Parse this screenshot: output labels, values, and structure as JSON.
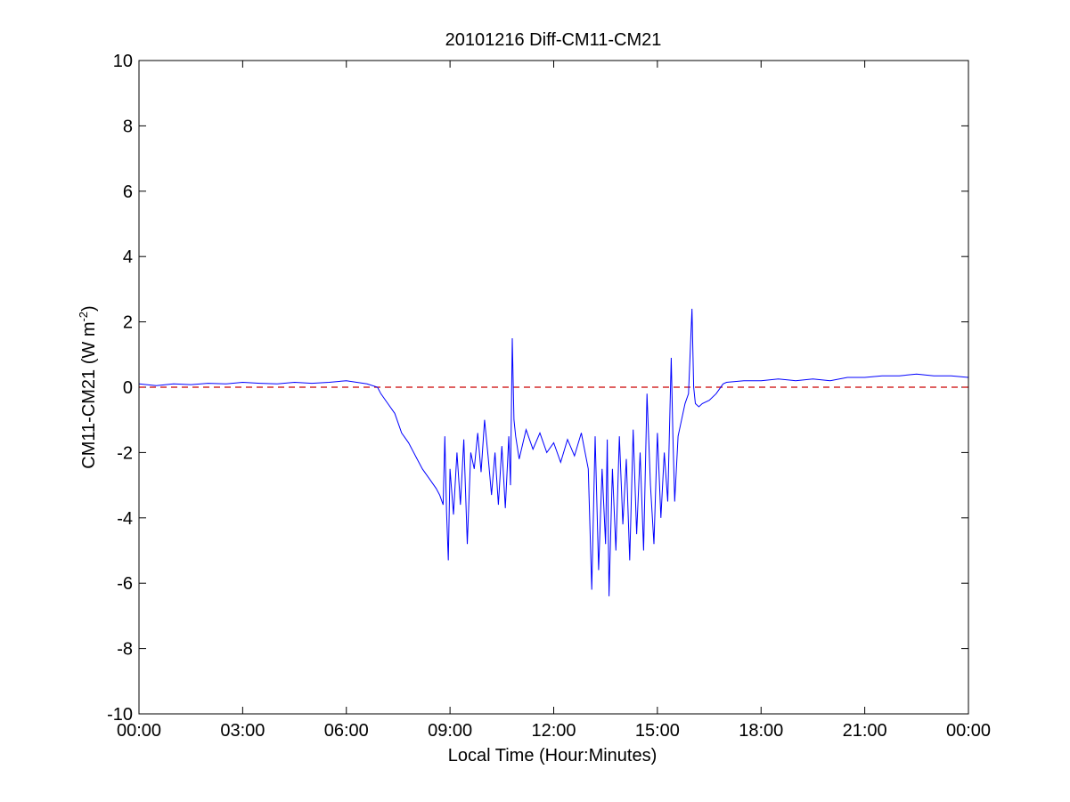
{
  "chart_data": {
    "type": "line",
    "title": "20101216 Diff-CM11-CM21",
    "xlabel": "Local Time (Hour:Minutes)",
    "ylabel": {
      "main": "CM11-CM21 (W m",
      "sup": "-2",
      "close": ")"
    },
    "xlim": [
      0,
      24
    ],
    "ylim": [
      -10,
      10
    ],
    "x_ticks": [
      0,
      3,
      6,
      9,
      12,
      15,
      18,
      21,
      24
    ],
    "x_tick_labels": [
      "00:00",
      "03:00",
      "06:00",
      "09:00",
      "12:00",
      "15:00",
      "18:00",
      "21:00",
      "00:00"
    ],
    "y_ticks": [
      -10,
      -8,
      -6,
      -4,
      -2,
      0,
      2,
      4,
      6,
      8,
      10
    ],
    "y_tick_labels": [
      "-10",
      "-8",
      "-6",
      "-4",
      "-2",
      "0",
      "2",
      "4",
      "6",
      "8",
      "10"
    ],
    "grid": false,
    "colors": {
      "series": "#0000ff",
      "reference": "#cc0000"
    },
    "reference_line": {
      "y": 0,
      "style": "dashed"
    },
    "series": [
      {
        "x": [
          0,
          0.5,
          1,
          1.5,
          2,
          2.5,
          3,
          3.5,
          4,
          4.5,
          5,
          5.5,
          6,
          6.3,
          6.6,
          6.9,
          7.0,
          7.2,
          7.4,
          7.6,
          7.8,
          8.0,
          8.2,
          8.4,
          8.6,
          8.7,
          8.8,
          8.85,
          8.9,
          8.95,
          9.0,
          9.1,
          9.2,
          9.3,
          9.4,
          9.5,
          9.6,
          9.7,
          9.8,
          9.9,
          10.0,
          10.1,
          10.2,
          10.3,
          10.4,
          10.5,
          10.6,
          10.7,
          10.75,
          10.8,
          10.85,
          10.9,
          11.0,
          11.2,
          11.4,
          11.6,
          11.8,
          12.0,
          12.2,
          12.4,
          12.6,
          12.8,
          13.0,
          13.1,
          13.2,
          13.3,
          13.4,
          13.5,
          13.55,
          13.6,
          13.7,
          13.8,
          13.9,
          14.0,
          14.1,
          14.2,
          14.3,
          14.4,
          14.5,
          14.6,
          14.7,
          14.8,
          14.9,
          15.0,
          15.1,
          15.2,
          15.3,
          15.4,
          15.45,
          15.5,
          15.6,
          15.7,
          15.8,
          15.9,
          16.0,
          16.05,
          16.1,
          16.2,
          16.3,
          16.5,
          16.7,
          16.9,
          17.0,
          17.5,
          18.0,
          18.5,
          19.0,
          19.5,
          20.0,
          20.5,
          21.0,
          21.5,
          22.0,
          22.5,
          23.0,
          23.5,
          24.0
        ],
        "y": [
          0.1,
          0.05,
          0.1,
          0.08,
          0.12,
          0.1,
          0.15,
          0.12,
          0.1,
          0.15,
          0.12,
          0.15,
          0.2,
          0.15,
          0.1,
          0.0,
          -0.2,
          -0.5,
          -0.8,
          -1.4,
          -1.7,
          -2.1,
          -2.5,
          -2.8,
          -3.1,
          -3.3,
          -3.6,
          -1.5,
          -3.8,
          -5.3,
          -2.5,
          -3.9,
          -2.0,
          -3.6,
          -1.6,
          -4.8,
          -2.0,
          -2.5,
          -1.4,
          -2.6,
          -1.0,
          -2.1,
          -3.3,
          -2.0,
          -3.6,
          -1.8,
          -3.7,
          -1.5,
          -3.0,
          1.5,
          -1.0,
          -1.5,
          -2.2,
          -1.3,
          -1.9,
          -1.4,
          -2.0,
          -1.7,
          -2.3,
          -1.6,
          -2.1,
          -1.4,
          -2.5,
          -6.2,
          -1.5,
          -5.6,
          -2.5,
          -4.8,
          -1.6,
          -6.4,
          -2.5,
          -5.0,
          -1.5,
          -4.2,
          -2.2,
          -5.3,
          -1.3,
          -4.5,
          -2.0,
          -5.0,
          -0.2,
          -3.0,
          -4.8,
          -1.4,
          -4.0,
          -2.0,
          -3.5,
          0.9,
          -1.5,
          -3.5,
          -1.5,
          -1.0,
          -0.5,
          -0.2,
          2.4,
          0.0,
          -0.5,
          -0.6,
          -0.5,
          -0.4,
          -0.2,
          0.1,
          0.15,
          0.2,
          0.2,
          0.25,
          0.2,
          0.25,
          0.2,
          0.3,
          0.3,
          0.35,
          0.35,
          0.4,
          0.35,
          0.35,
          0.3
        ]
      }
    ]
  }
}
